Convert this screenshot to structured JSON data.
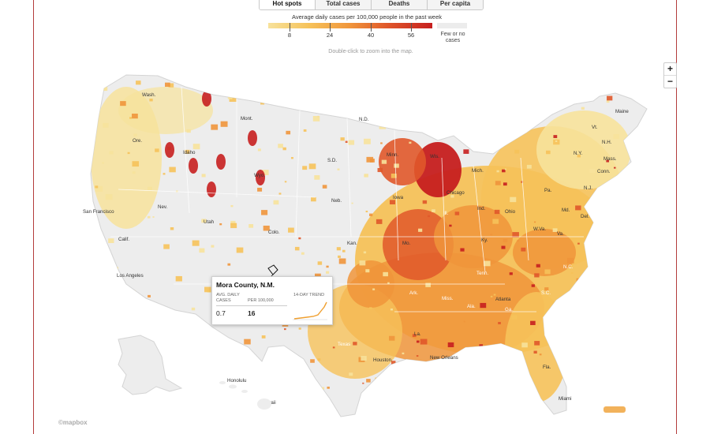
{
  "tabs": [
    "Hot spots",
    "Total cases",
    "Deaths",
    "Per capita"
  ],
  "active_tab": "Hot spots",
  "subtitle": "Average daily cases per 100,000 people in the past week",
  "legend": {
    "ticks": [
      "8",
      "24",
      "40",
      "56"
    ],
    "no_cases_label_1": "Few or no",
    "no_cases_label_2": "cases",
    "colors": [
      "#f7e29b",
      "#f6c25a",
      "#f0953b",
      "#e0582a",
      "#c61f1f",
      "#ececec"
    ]
  },
  "hint": "Double-click to zoom into the map.",
  "zoom": {
    "in": "+",
    "out": "−"
  },
  "places": {
    "states": [
      "Wash.",
      "Mont.",
      "N.D.",
      "Minn.",
      "Ore.",
      "Idaho",
      "Wyo.",
      "S.D.",
      "Wis.",
      "Mich.",
      "Maine",
      "Vt.",
      "N.H.",
      "N.Y.",
      "Mass.",
      "Conn.",
      "N.J.",
      "Nev.",
      "Neb.",
      "Iowa",
      "Ohio",
      "Pa.",
      "Del.",
      "Md.",
      "Utah",
      "Colo.",
      "Calif.",
      "Ill.",
      "Ind.",
      "W.Va.",
      "Va.",
      "Ky.",
      "Mo.",
      "Kan.",
      "N.C.",
      "Ark.",
      "Miss.",
      "Tenn.",
      "Ala.",
      "Ga.",
      "S.C.",
      "La.",
      "Texas",
      "Fla.",
      "Alaska",
      "Hawaii",
      "P.R."
    ],
    "cities": [
      "San Francisco",
      "Los Angeles",
      "Chicago",
      "Atlanta",
      "Houston",
      "New Orleans",
      "Miami",
      "Anchorage",
      "Honolulu"
    ]
  },
  "tooltip": {
    "title": "Mora County, N.M.",
    "avg_label": "AVG. DAILY CASES",
    "per_label": "PER 100,000",
    "trend_label": "14-DAY TREND",
    "avg_value": "0.7",
    "per_value": "16"
  },
  "attribution": "©mapbox"
}
